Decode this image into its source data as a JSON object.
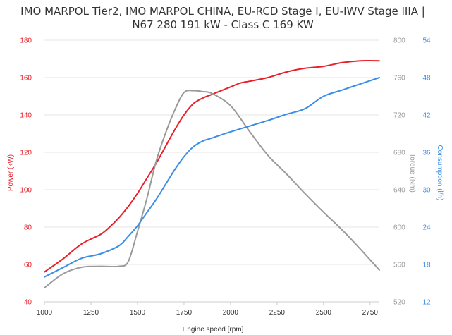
{
  "chart_data": {
    "type": "line",
    "title_lines": [
      "IMO MARPOL Tier2, IMO MARPOL CHINA, EU-RCD Stage I, EU-IWV Stage IIIA |",
      "N67 280 191 kW - Class C 169 KW"
    ],
    "xlabel": "Engine speed [rpm]",
    "x_ticks": [
      "1000",
      "1250",
      "1500",
      "1750",
      "2000",
      "2250",
      "2500",
      "2750"
    ],
    "xlim": [
      1000,
      2800
    ],
    "axes": {
      "power": {
        "label": "Power (kW)",
        "color": "#e8202a",
        "ylim": [
          40,
          180
        ],
        "ticks": [
          "40",
          "60",
          "80",
          "100",
          "120",
          "140",
          "160",
          "180"
        ]
      },
      "torque": {
        "label": "Torque (Nm)",
        "color": "#9a9a9a",
        "ylim": [
          520,
          800
        ],
        "ticks": [
          "520",
          "560",
          "600",
          "640",
          "680",
          "720",
          "760",
          "800"
        ]
      },
      "consumption": {
        "label": "Consumption (l/h)",
        "color": "#3a8ee6",
        "ylim": [
          12,
          54
        ],
        "ticks": [
          "12",
          "18",
          "24",
          "30",
          "36",
          "42",
          "48",
          "54"
        ]
      }
    },
    "series": [
      {
        "key": "power",
        "axis": "power",
        "color": "#e8202a",
        "x": [
          1000,
          1100,
          1200,
          1300,
          1350,
          1400,
          1450,
          1500,
          1550,
          1600,
          1650,
          1700,
          1750,
          1800,
          1850,
          1900,
          1950,
          2000,
          2050,
          2100,
          2200,
          2300,
          2400,
          2500,
          2600,
          2700,
          2800
        ],
        "y": [
          56,
          63,
          71,
          76,
          80,
          85,
          91,
          98,
          106,
          114,
          123,
          132,
          140,
          146,
          149,
          151,
          153,
          155,
          157,
          158,
          160,
          163,
          165,
          166,
          168,
          169,
          169
        ]
      },
      {
        "key": "torque",
        "axis": "torque",
        "color": "#9a9a9a",
        "x": [
          1000,
          1100,
          1200,
          1300,
          1400,
          1450,
          1500,
          1550,
          1600,
          1650,
          1700,
          1750,
          1800,
          1850,
          1900,
          2000,
          2100,
          2200,
          2300,
          2400,
          2500,
          2600,
          2700,
          2800
        ],
        "y": [
          535,
          550,
          557,
          558,
          558,
          563,
          595,
          630,
          670,
          700,
          725,
          744,
          746,
          745,
          743,
          730,
          703,
          677,
          657,
          636,
          616,
          597,
          576,
          554
        ]
      },
      {
        "key": "consumption",
        "axis": "consumption",
        "color": "#3a8ee6",
        "x": [
          1000,
          1100,
          1200,
          1300,
          1400,
          1450,
          1500,
          1550,
          1600,
          1650,
          1700,
          1750,
          1800,
          1850,
          1900,
          2000,
          2100,
          2200,
          2300,
          2400,
          2500,
          2600,
          2700,
          2800
        ],
        "y": [
          16,
          17.5,
          19,
          19.7,
          21,
          22.5,
          24.2,
          26.3,
          28.4,
          30.8,
          33.2,
          35.3,
          36.9,
          37.8,
          38.3,
          39.3,
          40.2,
          41.1,
          42.1,
          43,
          45,
          46,
          47,
          48
        ]
      }
    ]
  }
}
